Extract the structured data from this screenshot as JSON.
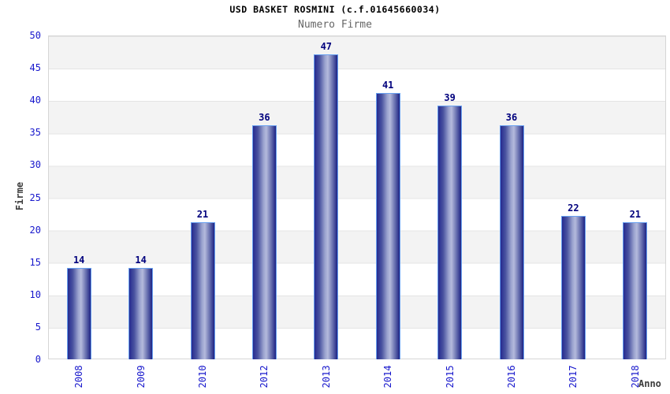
{
  "header": {
    "title": "USD BASKET ROSMINI (c.f.01645660034)",
    "subtitle": "Numero Firme"
  },
  "chart_data": {
    "type": "bar",
    "title": "USD BASKET ROSMINI (c.f.01645660034)",
    "subtitle": "Numero Firme",
    "categories": [
      "2008",
      "2009",
      "2010",
      "2012",
      "2013",
      "2014",
      "2015",
      "2016",
      "2017",
      "2018"
    ],
    "values": [
      14,
      14,
      21,
      36,
      47,
      41,
      39,
      36,
      22,
      21
    ],
    "xlabel": "Anno",
    "ylabel": "Firme",
    "ylim": [
      0,
      50
    ],
    "yticks": [
      0,
      5,
      10,
      15,
      20,
      25,
      30,
      35,
      40,
      45,
      50
    ],
    "grid": "horizontal-alternating-bands",
    "legend": "none",
    "colors": {
      "bar_dark": "#1d2384",
      "bar_highlight": "#b4badc",
      "bar_border": "#68a0f0",
      "tick_label": "#1717cc",
      "value_label": "#00007d",
      "axis_title": "#3c3c3c",
      "subtitle": "#666666",
      "band_gray": "#f3f3f3",
      "band_white": "#ffffff",
      "plot_border": "#d6d6d6"
    }
  }
}
